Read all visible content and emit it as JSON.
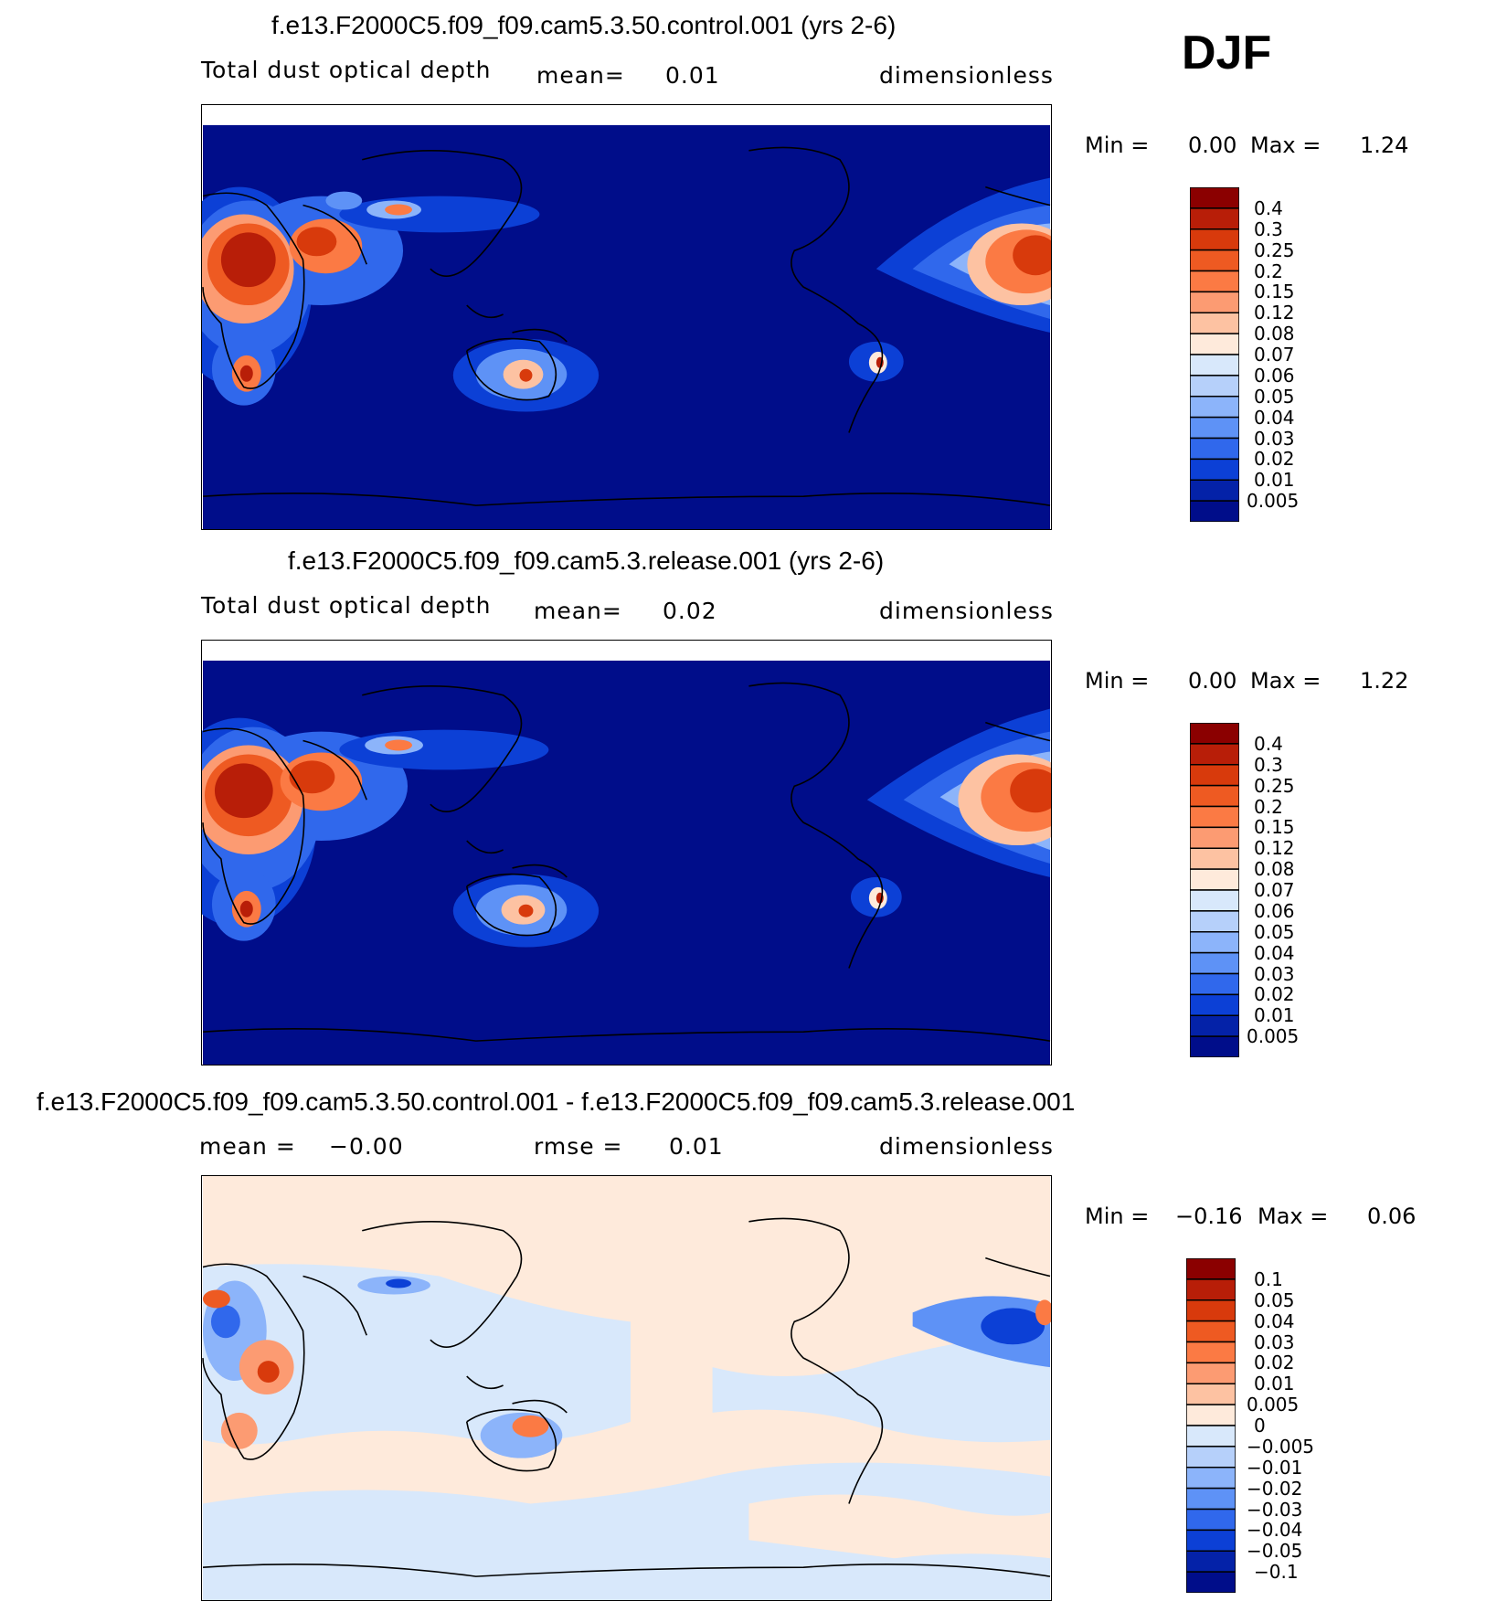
{
  "season": "DJF",
  "panels": [
    {
      "title": "f.e13.F2000C5.f09_f09.cam5.3.50.control.001 (yrs 2-6)",
      "left_label": "Total dust optical depth",
      "mean_label": "mean=",
      "mean_value": "0.01",
      "units": "dimensionless",
      "min_label": "Min =",
      "min_value": "0.00",
      "max_label": "Max =",
      "max_value": "1.24",
      "colorbar": {
        "labels": [
          "0.4",
          "0.3",
          "0.25",
          "0.2",
          "0.15",
          "0.12",
          "0.08",
          "0.07",
          "0.06",
          "0.05",
          "0.04",
          "0.03",
          "0.02",
          "0.01",
          "0.005"
        ],
        "colors": [
          "#8b0000",
          "#b81e08",
          "#d83a0c",
          "#ee5a22",
          "#fb7a44",
          "#fc9b72",
          "#fdc2a2",
          "#feeadb",
          "#d8e8fb",
          "#b6d0fa",
          "#8cb4fa",
          "#5e92f6",
          "#3068ec",
          "#0c40d6",
          "#0422a8",
          "#000d8a"
        ]
      }
    },
    {
      "title": "f.e13.F2000C5.f09_f09.cam5.3.release.001 (yrs 2-6)",
      "left_label": "Total dust optical depth",
      "mean_label": "mean=",
      "mean_value": "0.02",
      "units": "dimensionless",
      "min_label": "Min =",
      "min_value": "0.00",
      "max_label": "Max =",
      "max_value": "1.22",
      "colorbar": {
        "labels": [
          "0.4",
          "0.3",
          "0.25",
          "0.2",
          "0.15",
          "0.12",
          "0.08",
          "0.07",
          "0.06",
          "0.05",
          "0.04",
          "0.03",
          "0.02",
          "0.01",
          "0.005"
        ],
        "colors": [
          "#8b0000",
          "#b81e08",
          "#d83a0c",
          "#ee5a22",
          "#fb7a44",
          "#fc9b72",
          "#fdc2a2",
          "#feeadb",
          "#d8e8fb",
          "#b6d0fa",
          "#8cb4fa",
          "#5e92f6",
          "#3068ec",
          "#0c40d6",
          "#0422a8",
          "#000d8a"
        ]
      }
    },
    {
      "title": "f.e13.F2000C5.f09_f09.cam5.3.50.control.001 - f.e13.F2000C5.f09_f09.cam5.3.release.001",
      "mean_label": "mean =",
      "mean_value": "−0.00",
      "rmse_label": "rmse =",
      "rmse_value": "0.01",
      "units": "dimensionless",
      "min_label": "Min =",
      "min_value": "−0.16",
      "max_label": "Max =",
      "max_value": "0.06",
      "colorbar": {
        "labels": [
          "0.1",
          "0.05",
          "0.04",
          "0.03",
          "0.02",
          "0.01",
          "0.005",
          "0",
          "−0.005",
          "−0.01",
          "−0.02",
          "−0.03",
          "−0.04",
          "−0.05",
          "−0.1"
        ],
        "colors": [
          "#8b0000",
          "#b81e08",
          "#d83a0c",
          "#ee5a22",
          "#fb7a44",
          "#fc9b72",
          "#fdc2a2",
          "#feeadb",
          "#d8e8fb",
          "#b6d0fa",
          "#8cb4fa",
          "#5e92f6",
          "#3068ec",
          "#0c40d6",
          "#0422a8",
          "#000d8a"
        ]
      }
    }
  ]
}
